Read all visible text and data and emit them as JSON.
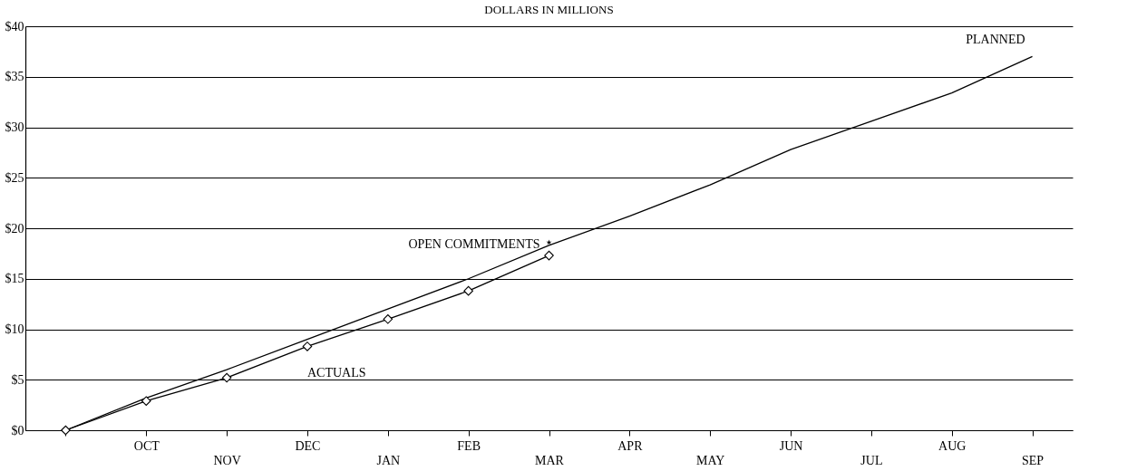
{
  "chart_data": {
    "type": "line",
    "title": "DOLLARS IN MILLIONS",
    "categories": [
      null,
      "OCT",
      "NOV",
      "DEC",
      "JAN",
      "FEB",
      "MAR",
      "APR",
      "MAY",
      "JUN",
      "JUL",
      "AUG",
      "SEP"
    ],
    "series": [
      {
        "name": "PLANNED",
        "color": "#000000",
        "marker": "none",
        "values": [
          0,
          3.2,
          6.0,
          9.0,
          12.0,
          15.0,
          18.3,
          21.2,
          24.3,
          27.8,
          30.6,
          33.4,
          37.0
        ]
      },
      {
        "name": "ACTUALS",
        "color": "#000000",
        "marker": "diamond",
        "values": [
          0,
          2.9,
          5.2,
          8.3,
          11.0,
          13.8,
          17.3,
          null,
          null,
          null,
          null,
          null,
          null
        ]
      },
      {
        "name": "OPEN COMMITMENTS",
        "type": "scatter",
        "color": "#000000",
        "marker": "star",
        "values": [
          null,
          null,
          null,
          null,
          null,
          null,
          18.6,
          null,
          null,
          null,
          null,
          null,
          null
        ]
      }
    ],
    "ylim": [
      0,
      40
    ],
    "yticks": [
      {
        "value": 0,
        "label": "$0"
      },
      {
        "value": 5,
        "label": "$5"
      },
      {
        "value": 10,
        "label": "$10"
      },
      {
        "value": 15,
        "label": "$15"
      },
      {
        "value": 20,
        "label": "$20"
      },
      {
        "value": 25,
        "label": "$25"
      },
      {
        "value": 30,
        "label": "$30"
      },
      {
        "value": 35,
        "label": "$35"
      },
      {
        "value": 40,
        "label": "$40"
      }
    ],
    "grid": "y",
    "line_style": "solid"
  }
}
